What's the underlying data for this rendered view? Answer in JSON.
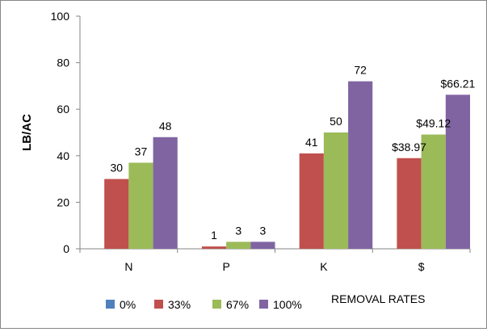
{
  "chart_data": {
    "type": "bar",
    "categories": [
      "N",
      "P",
      "K",
      "$"
    ],
    "series": [
      {
        "name": "0%",
        "color": "#4F81BD",
        "values": [
          0,
          0,
          0,
          0
        ],
        "labels": [
          "",
          "",
          "",
          ""
        ]
      },
      {
        "name": "33%",
        "color": "#C0504D",
        "values": [
          30,
          1,
          41,
          38.97
        ],
        "labels": [
          "30",
          "1",
          "41",
          "$38.97"
        ]
      },
      {
        "name": "67%",
        "color": "#9BBB59",
        "values": [
          37,
          3,
          50,
          49.12
        ],
        "labels": [
          "37",
          "3",
          "50",
          "$49.12"
        ]
      },
      {
        "name": "100%",
        "color": "#8064A2",
        "values": [
          48,
          3,
          72,
          66.21
        ],
        "labels": [
          "48",
          "3",
          "72",
          "$66.21"
        ]
      }
    ],
    "title": "",
    "ylabel": "LB/AC",
    "xlabel": "REMOVAL RATES",
    "ylim": [
      0,
      100
    ],
    "yticks": [
      0,
      20,
      40,
      60,
      80,
      100
    ],
    "grid": false,
    "legend_position": "bottom"
  }
}
